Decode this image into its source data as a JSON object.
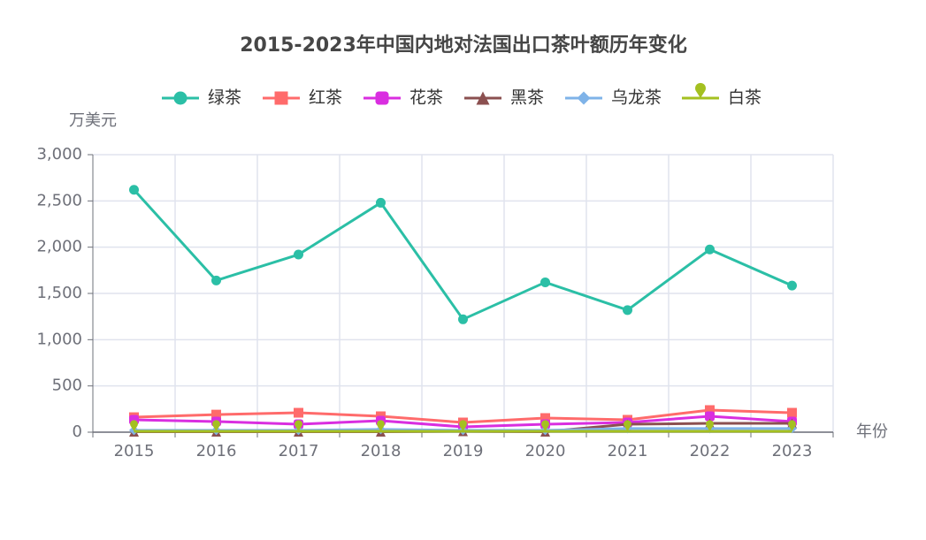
{
  "chart_data": {
    "type": "line",
    "title": "2015-2023年中国内地对法国出口茶叶额历年变化",
    "y_label": "万美元",
    "x_label": "年份",
    "categories": [
      "2015",
      "2016",
      "2017",
      "2018",
      "2019",
      "2020",
      "2021",
      "2022",
      "2023"
    ],
    "ylim": [
      0,
      3000
    ],
    "yticks": [
      0,
      500,
      {
        "value": 1000,
        "label": "1,000"
      },
      {
        "value": 1500,
        "label": "1,500"
      },
      {
        "value": 2000,
        "label": "2,000"
      },
      {
        "value": 2500,
        "label": "2,500"
      },
      {
        "value": 3000,
        "label": "3,000"
      }
    ],
    "grid": true,
    "series": [
      {
        "name": "绿茶",
        "color": "#2bbfa6",
        "symbol": "circle",
        "values": [
          2620,
          1640,
          1920,
          2480,
          1220,
          1620,
          1320,
          1975,
          1585
        ]
      },
      {
        "name": "红茶",
        "color": "#ff6b6b",
        "symbol": "rect",
        "values": [
          162,
          190,
          210,
          172,
          105,
          153,
          134,
          239,
          210
        ]
      },
      {
        "name": "花茶",
        "color": "#d92ee0",
        "symbol": "roundRect",
        "values": [
          134,
          115,
          86,
          124,
          57,
          86,
          105,
          172,
          115
        ]
      },
      {
        "name": "黑茶",
        "color": "#8b5050",
        "symbol": "triangle",
        "values": [
          5,
          5,
          5,
          5,
          10,
          5,
          86,
          95,
          95
        ]
      },
      {
        "name": "乌龙茶",
        "color": "#7fb3e8",
        "symbol": "diamond",
        "values": [
          20,
          20,
          20,
          30,
          20,
          20,
          40,
          40,
          40
        ]
      },
      {
        "name": "白茶",
        "color": "#a4c020",
        "symbol": "pin",
        "values": [
          10,
          10,
          10,
          10,
          10,
          10,
          10,
          10,
          10
        ]
      }
    ]
  }
}
